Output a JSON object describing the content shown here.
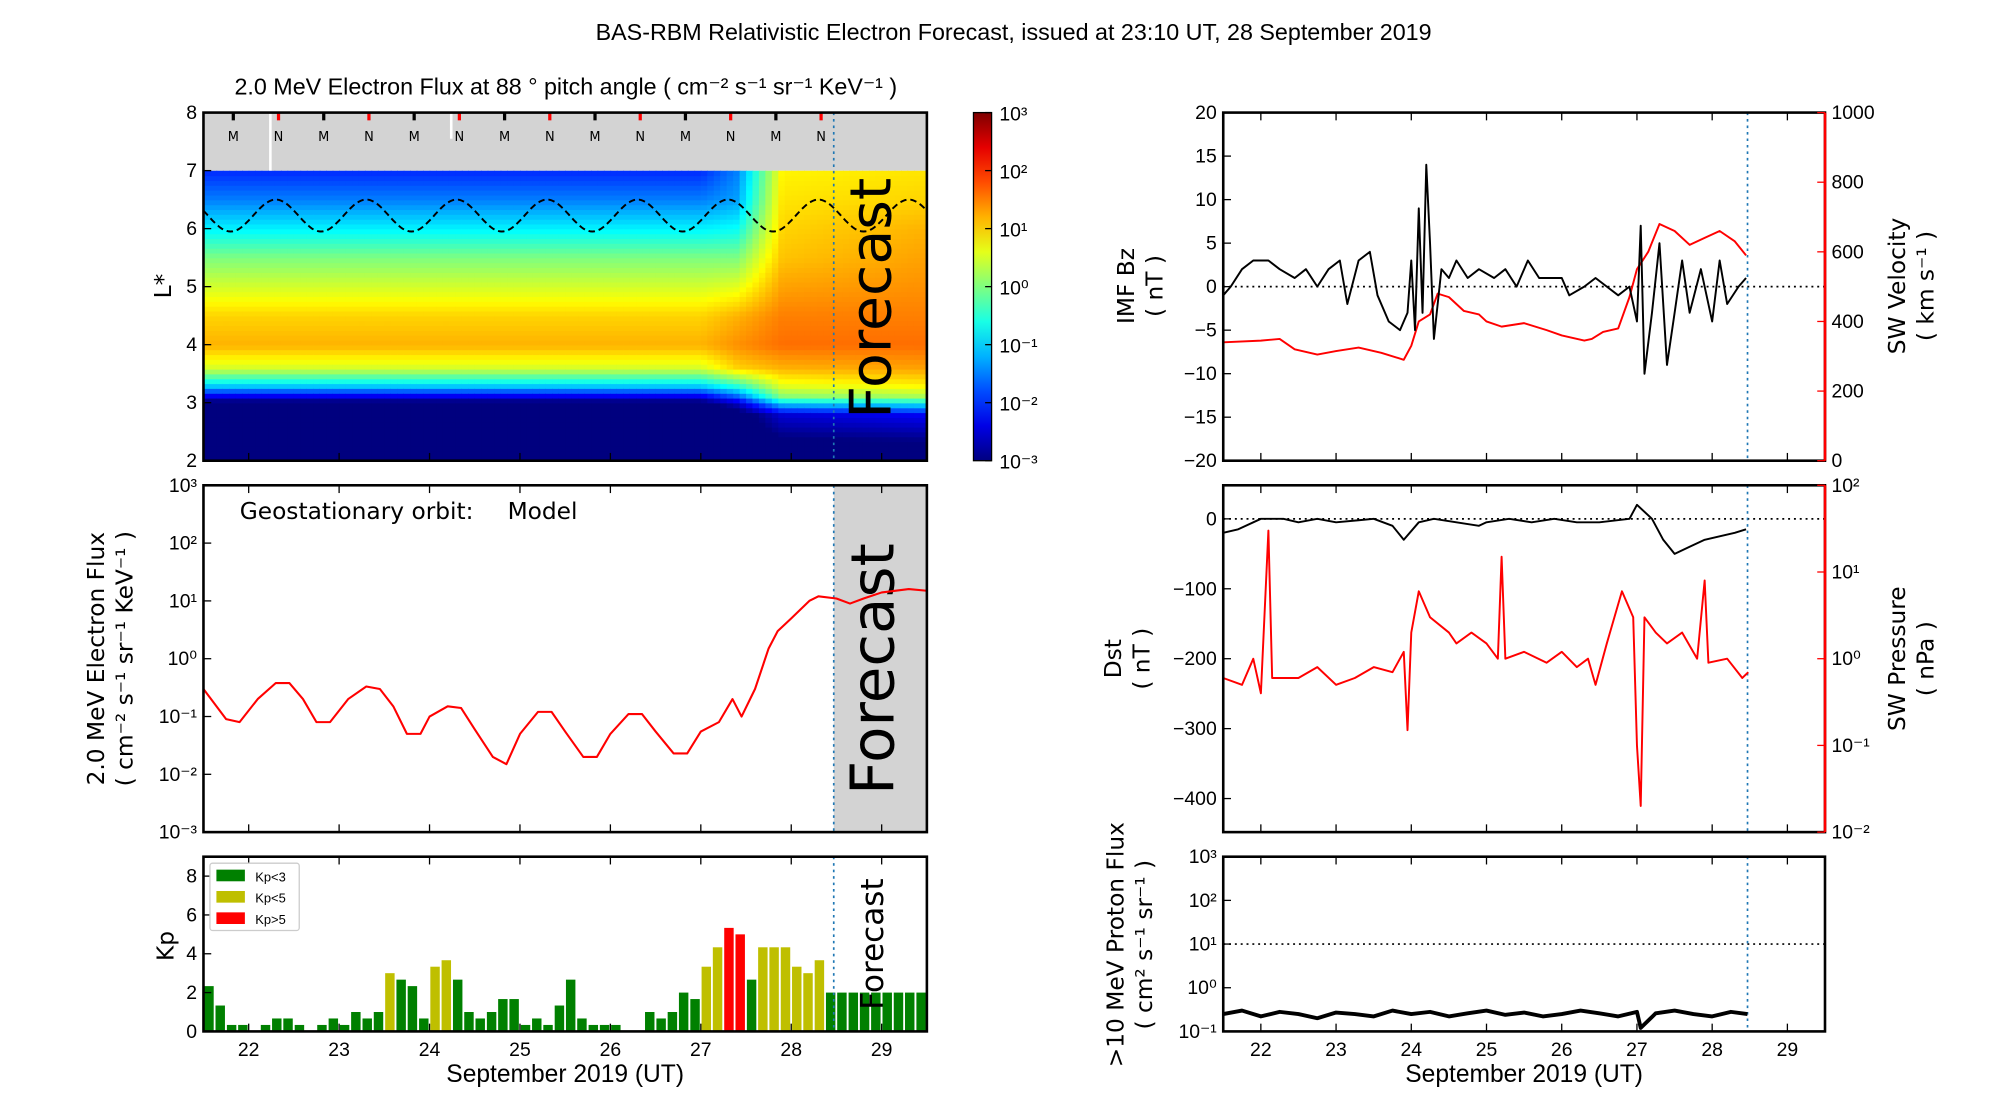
{
  "title": "BAS-RBM Relativistic Electron Forecast, issued at 23:10 UT, 28 September 2019",
  "forecast_label": "Forecast",
  "forecast_start_day": 28.47,
  "colors": {
    "forecast_line": "#1f77b4",
    "kp_low": "#008000",
    "kp_mid": "#bfbf00",
    "kp_high": "#ff0000",
    "series_black": "#000000",
    "series_red": "#ff0000",
    "forecast_shade": "#d3d3d3"
  },
  "chart_data": [
    {
      "id": "lstar_heatmap",
      "type": "heatmap",
      "title": "2.0 MeV Electron Flux at 88 ° pitch angle ( cm⁻² s⁻¹ sr⁻¹ KeV⁻¹ )",
      "ylabel": "L*",
      "ylim": [
        2,
        8
      ],
      "yticks": [
        "2",
        "3",
        "4",
        "5",
        "6",
        "7",
        "8"
      ],
      "xlim": [
        21.5,
        29.5
      ],
      "colorbar": {
        "scale": "log",
        "range": [
          0.001,
          1000
        ],
        "tick_labels": [
          "10⁻³",
          "10⁻²",
          "10⁻¹",
          "10⁰",
          "10¹",
          "10²",
          "10³"
        ],
        "colormap": "jet"
      },
      "no_data_band_L": [
        7,
        8
      ],
      "L_grid": [
        2,
        2.8,
        3.0,
        3.1,
        3.3,
        3.6,
        4,
        4.5,
        5,
        5.5,
        6,
        6.5,
        7
      ],
      "profiles_log10_flux": [
        {
          "day": 21.5,
          "values": [
            -3.5,
            -3.5,
            -3.2,
            -2.5,
            -1,
            0.5,
            1.2,
            1.0,
            0.5,
            0,
            -0.8,
            -1.5,
            -2
          ]
        },
        {
          "day": 27.0,
          "values": [
            -3.5,
            -3.5,
            -3.2,
            -2.5,
            -1,
            0.5,
            1.2,
            1.0,
            0.5,
            0,
            -0.8,
            -1.5,
            -2
          ]
        },
        {
          "day": 27.4,
          "values": [
            -3.5,
            -3.3,
            -2.6,
            -1.8,
            -0.5,
            1.0,
            1.4,
            1.2,
            0.6,
            0,
            -0.7,
            -1.3,
            -1.5
          ]
        },
        {
          "day": 27.9,
          "values": [
            -3.5,
            -2.5,
            -1,
            0,
            0.6,
            1.2,
            1.6,
            1.5,
            1.3,
            1.1,
            1.0,
            0.9,
            0.8
          ]
        },
        {
          "day": 29.5,
          "values": [
            -3.5,
            -2.3,
            -0.8,
            0.2,
            0.8,
            1.3,
            1.6,
            1.5,
            1.4,
            1.3,
            1.2,
            1.0,
            0.9
          ]
        }
      ],
      "dashed_line": {
        "L_min": 5.95,
        "L_max": 6.5,
        "period_days": 1,
        "peak_day": 22.3
      },
      "markers": [
        {
          "label": "M",
          "day": 21.83
        },
        {
          "label": "N",
          "day": 22.33
        },
        {
          "label": "M",
          "day": 22.83
        },
        {
          "label": "N",
          "day": 23.33
        },
        {
          "label": "M",
          "day": 23.83
        },
        {
          "label": "N",
          "day": 24.33
        },
        {
          "label": "M",
          "day": 24.83
        },
        {
          "label": "N",
          "day": 25.33
        },
        {
          "label": "M",
          "day": 25.83
        },
        {
          "label": "N",
          "day": 26.33
        },
        {
          "label": "M",
          "day": 26.83
        },
        {
          "label": "N",
          "day": 27.33
        },
        {
          "label": "M",
          "day": 27.83
        },
        {
          "label": "N",
          "day": 28.33
        }
      ]
    },
    {
      "id": "geo_flux",
      "type": "line",
      "annotation": "Geostationary orbit:",
      "annotation_model": "Model",
      "ylabel": "2.0 MeV Electron Flux",
      "ylabel_units": "( cm⁻² s⁻¹ sr⁻¹ KeV⁻¹ )",
      "yscale": "log",
      "ylim": [
        0.001,
        1000
      ],
      "yticks": [
        "10⁻³",
        "10⁻²",
        "10⁻¹",
        "10⁰",
        "10¹",
        "10²",
        "10³"
      ],
      "xlim": [
        21.5,
        29.5
      ],
      "x": [
        21.5,
        21.75,
        21.9,
        22.1,
        22.3,
        22.45,
        22.6,
        22.75,
        22.9,
        23.1,
        23.3,
        23.45,
        23.6,
        23.75,
        23.9,
        24.0,
        24.2,
        24.35,
        24.5,
        24.7,
        24.85,
        25.0,
        25.2,
        25.35,
        25.5,
        25.7,
        25.85,
        26.0,
        26.2,
        26.35,
        26.5,
        26.7,
        26.85,
        27.0,
        27.2,
        27.35,
        27.45,
        27.6,
        27.75,
        27.85,
        28.0,
        28.2,
        28.3,
        28.5,
        28.65,
        28.8,
        29.0,
        29.3,
        29.5
      ],
      "y": [
        0.3,
        0.09,
        0.08,
        0.2,
        0.38,
        0.38,
        0.2,
        0.08,
        0.08,
        0.2,
        0.33,
        0.3,
        0.15,
        0.05,
        0.05,
        0.1,
        0.15,
        0.14,
        0.06,
        0.02,
        0.015,
        0.05,
        0.12,
        0.12,
        0.055,
        0.02,
        0.02,
        0.05,
        0.11,
        0.11,
        0.055,
        0.023,
        0.023,
        0.055,
        0.08,
        0.2,
        0.1,
        0.3,
        1.5,
        3,
        5,
        10,
        12,
        11,
        9,
        11,
        14,
        16,
        15
      ]
    },
    {
      "id": "kp",
      "type": "bar",
      "ylabel": "Kp",
      "ylim": [
        0,
        9
      ],
      "yticks": [
        "0",
        "2",
        "4",
        "6",
        "8"
      ],
      "xlabel": "September 2019 (UT)",
      "xticks": [
        "22",
        "23",
        "24",
        "25",
        "26",
        "27",
        "28",
        "29"
      ],
      "xlim": [
        21.5,
        29.5
      ],
      "bar_interval_hours": 3,
      "legend": {
        "placement": "top-left",
        "entries": [
          "Kp<3",
          "Kp<5",
          "Kp>5"
        ]
      },
      "values": [
        2.33,
        1.33,
        0.33,
        0.33,
        0,
        0.33,
        0.67,
        0.67,
        0.33,
        0,
        0.33,
        0.67,
        0.33,
        1.0,
        0.67,
        1.0,
        3.0,
        2.67,
        2.33,
        0.67,
        3.33,
        3.67,
        2.67,
        1.0,
        0.67,
        1.0,
        1.67,
        1.67,
        0.33,
        0.67,
        0.33,
        1.33,
        2.67,
        0.67,
        0.33,
        0.33,
        0.33,
        0,
        0,
        1.0,
        0.67,
        1.0,
        2.0,
        1.67,
        3.33,
        4.33,
        5.33,
        5.0,
        2.67,
        4.33,
        4.33,
        4.33,
        3.33,
        3.0,
        3.67,
        2.0,
        2.0,
        2.0,
        2.0,
        2.0,
        2.0,
        2.0,
        2.0,
        2.0
      ]
    },
    {
      "id": "imf_bz_sw_velocity",
      "type": "line",
      "ylabel": "IMF Bz",
      "ylabel_units": "( nT )",
      "ylim": [
        -20,
        20
      ],
      "yticks": [
        "−20",
        "−15",
        "−10",
        "−5",
        "0",
        "5",
        "10",
        "15",
        "20"
      ],
      "y2label": "SW Velocity",
      "y2label_units": "( km s⁻¹ )",
      "y2lim": [
        0,
        1000
      ],
      "y2ticks": [
        "0",
        "200",
        "400",
        "600",
        "800",
        "1000"
      ],
      "xlim": [
        21.5,
        29.5
      ],
      "reference_line": 0,
      "series": [
        {
          "color": "black",
          "x": [
            21.5,
            21.6,
            21.75,
            21.9,
            22.1,
            22.25,
            22.45,
            22.6,
            22.75,
            22.9,
            23.05,
            23.15,
            23.3,
            23.45,
            23.55,
            23.7,
            23.85,
            23.95,
            24.0,
            24.05,
            24.1,
            24.15,
            24.2,
            24.25,
            24.3,
            24.4,
            24.5,
            24.6,
            24.75,
            24.9,
            25.1,
            25.25,
            25.4,
            25.55,
            25.7,
            25.85,
            26.0,
            26.1,
            26.3,
            26.45,
            26.6,
            26.75,
            26.9,
            27.0,
            27.05,
            27.1,
            27.2,
            27.3,
            27.4,
            27.5,
            27.6,
            27.7,
            27.85,
            28.0,
            28.1,
            28.2,
            28.35,
            28.45
          ],
          "y": [
            -1,
            0,
            2,
            3,
            3,
            2,
            1,
            2,
            0,
            2,
            3,
            -2,
            3,
            4,
            -1,
            -4,
            -5,
            -3,
            3,
            -5,
            9,
            -3,
            14,
            5,
            -6,
            2,
            1,
            3,
            1,
            2,
            1,
            2,
            0,
            3,
            1,
            1,
            1,
            -1,
            0,
            1,
            0,
            -1,
            0,
            -4,
            7,
            -10,
            -3,
            5,
            -9,
            -3,
            3,
            -3,
            2,
            -4,
            3,
            -2,
            0,
            1
          ]
        },
        {
          "color": "red",
          "axis": "right",
          "x": [
            21.5,
            22.0,
            22.25,
            22.45,
            22.75,
            23.0,
            23.3,
            23.6,
            23.9,
            24.0,
            24.1,
            24.25,
            24.35,
            24.5,
            24.7,
            24.9,
            25.0,
            25.2,
            25.5,
            25.8,
            26.0,
            26.3,
            26.4,
            26.55,
            26.75,
            26.9,
            27.0,
            27.15,
            27.3,
            27.5,
            27.7,
            27.9,
            28.1,
            28.3,
            28.45
          ],
          "y": [
            340,
            345,
            350,
            320,
            305,
            315,
            325,
            310,
            290,
            330,
            400,
            420,
            480,
            470,
            430,
            420,
            400,
            385,
            395,
            375,
            360,
            345,
            350,
            370,
            380,
            470,
            550,
            600,
            680,
            660,
            620,
            640,
            660,
            630,
            590
          ]
        }
      ]
    },
    {
      "id": "dst_sw_pressure",
      "type": "line",
      "ylabel": "Dst",
      "ylabel_units": "( nT )",
      "ylim": [
        -448,
        48
      ],
      "yticks": [
        "−400",
        "−300",
        "−200",
        "−100",
        "0"
      ],
      "y2label": "SW Pressure",
      "y2label_units": "( nPa )",
      "y2scale": "log",
      "y2lim": [
        0.01,
        100
      ],
      "y2ticks": [
        "10⁻²",
        "10⁻¹",
        "10⁰",
        "10¹",
        "10²"
      ],
      "xlim": [
        21.5,
        29.5
      ],
      "reference_line": 0,
      "series": [
        {
          "color": "black",
          "x": [
            21.5,
            21.7,
            22.0,
            22.3,
            22.5,
            22.75,
            23.0,
            23.3,
            23.5,
            23.75,
            23.9,
            24.1,
            24.3,
            24.6,
            24.9,
            25.0,
            25.3,
            25.6,
            25.9,
            26.2,
            26.5,
            26.9,
            27.0,
            27.2,
            27.35,
            27.5,
            27.7,
            27.9,
            28.1,
            28.3,
            28.45
          ],
          "y": [
            -20,
            -15,
            0,
            0,
            -5,
            0,
            -5,
            -2,
            0,
            -10,
            -30,
            -5,
            0,
            -5,
            -10,
            -5,
            0,
            -5,
            0,
            -5,
            -5,
            0,
            20,
            0,
            -30,
            -50,
            -40,
            -30,
            -25,
            -20,
            -15
          ]
        },
        {
          "color": "red",
          "axis": "right",
          "x": [
            21.5,
            21.75,
            21.9,
            22.0,
            22.1,
            22.15,
            22.5,
            22.75,
            23.0,
            23.25,
            23.5,
            23.75,
            23.9,
            23.95,
            24.0,
            24.1,
            24.25,
            24.5,
            24.6,
            24.8,
            25.0,
            25.15,
            25.2,
            25.25,
            25.5,
            25.8,
            26.0,
            26.2,
            26.35,
            26.45,
            26.6,
            26.8,
            26.95,
            27.0,
            27.05,
            27.1,
            27.25,
            27.4,
            27.6,
            27.8,
            27.9,
            27.95,
            28.2,
            28.4,
            28.48
          ],
          "y": [
            0.6,
            0.5,
            1.0,
            0.4,
            30,
            0.6,
            0.6,
            0.8,
            0.5,
            0.6,
            0.8,
            0.7,
            1.2,
            0.15,
            2,
            6,
            3,
            2,
            1.5,
            2,
            1.5,
            1,
            15,
            1,
            1.2,
            0.9,
            1.2,
            0.8,
            1,
            0.5,
            1.5,
            6,
            3,
            0.1,
            0.02,
            3,
            2,
            1.5,
            2,
            1,
            8,
            0.9,
            1,
            0.6,
            0.7
          ]
        }
      ]
    },
    {
      "id": "proton_flux",
      "type": "line",
      "ylabel": ">10 MeV Proton Flux",
      "ylabel_units": "( cm² s⁻¹ sr⁻¹ )",
      "yscale": "log",
      "ylim": [
        0.1,
        1000
      ],
      "yticks": [
        "10⁻¹",
        "10⁰",
        "10¹",
        "10²",
        "10³"
      ],
      "xlabel": "September 2019 (UT)",
      "xticks": [
        "22",
        "23",
        "24",
        "25",
        "26",
        "27",
        "28",
        "29"
      ],
      "xlim": [
        21.5,
        29.5
      ],
      "threshold_line": 10,
      "x": [
        21.5,
        21.75,
        22.0,
        22.25,
        22.5,
        22.75,
        23.0,
        23.25,
        23.5,
        23.75,
        24.0,
        24.25,
        24.5,
        24.75,
        25.0,
        25.25,
        25.5,
        25.75,
        26.0,
        26.25,
        26.5,
        26.75,
        27.0,
        27.05,
        27.25,
        27.5,
        27.75,
        28.0,
        28.25,
        28.47
      ],
      "y": [
        0.25,
        0.3,
        0.22,
        0.28,
        0.25,
        0.2,
        0.27,
        0.25,
        0.22,
        0.3,
        0.25,
        0.28,
        0.22,
        0.26,
        0.3,
        0.24,
        0.27,
        0.22,
        0.25,
        0.3,
        0.26,
        0.22,
        0.28,
        0.12,
        0.26,
        0.3,
        0.25,
        0.22,
        0.28,
        0.25
      ]
    }
  ]
}
